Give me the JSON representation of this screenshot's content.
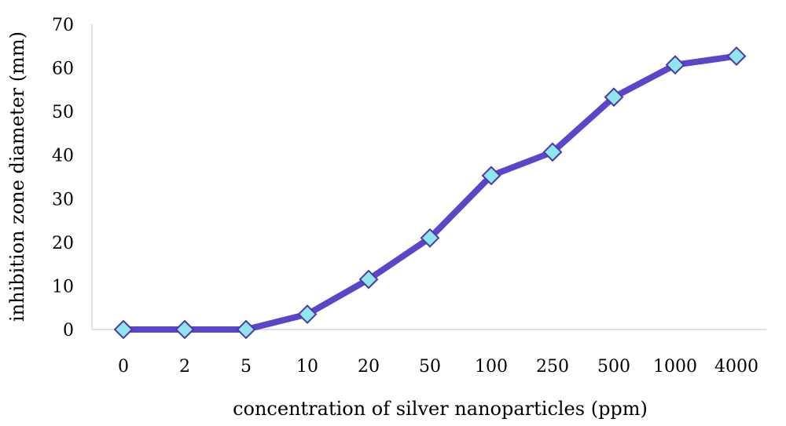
{
  "chart_data": {
    "type": "line",
    "categories": [
      "0",
      "2",
      "5",
      "10",
      "20",
      "50",
      "100",
      "250",
      "500",
      "1000",
      "4000"
    ],
    "values": [
      0,
      0,
      0,
      3.5,
      11.5,
      21,
      35.3,
      40.7,
      53.3,
      60.7,
      62.7
    ],
    "title": "",
    "xlabel": "concentration of silver nanoparticles (ppm)",
    "ylabel": "inhibition zone diameter (mm)",
    "ylim": [
      0,
      70
    ],
    "yticks": [
      "0",
      "10",
      "20",
      "30",
      "40",
      "50",
      "60",
      "70"
    ],
    "grid": false,
    "legend": "none",
    "line_color": "#5b45c9",
    "marker_fill": "#8fe6ec",
    "marker_stroke": "#4a3aa8"
  }
}
